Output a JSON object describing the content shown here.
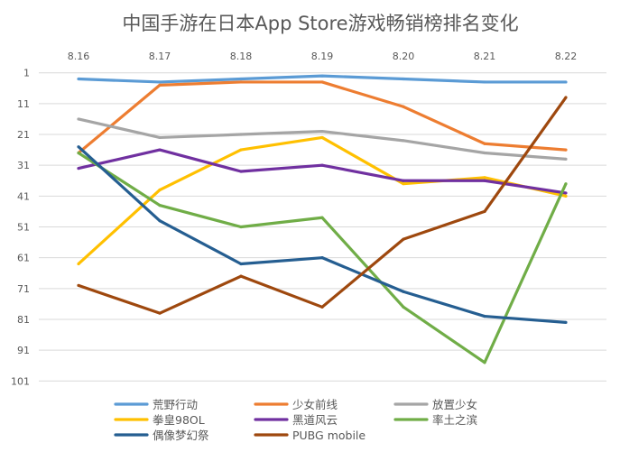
{
  "chart_data": {
    "type": "line",
    "title": "中国手游在日本App Store游戏畅销榜排名变化",
    "xlabel": "",
    "ylabel": "",
    "categories": [
      "8.16",
      "8.17",
      "8.18",
      "8.19",
      "8.20",
      "8.21",
      "8.22"
    ],
    "y_ticks": [
      "1",
      "11",
      "21",
      "31",
      "41",
      "51",
      "61",
      "71",
      "81",
      "91",
      "101"
    ],
    "ylim": [
      1,
      101
    ],
    "y_inverted": true,
    "grid": true,
    "legend_position": "bottom",
    "series": [
      {
        "name": "荒野行动",
        "color": "#5B9BD5",
        "values": [
          3,
          4,
          3,
          2,
          3,
          4,
          4
        ]
      },
      {
        "name": "少女前线",
        "color": "#ED7D31",
        "values": [
          27,
          5,
          4,
          4,
          12,
          24,
          26
        ]
      },
      {
        "name": "放置少女",
        "color": "#A5A5A5",
        "values": [
          16,
          22,
          21,
          20,
          23,
          27,
          29
        ]
      },
      {
        "name": "拳皇98OL",
        "color": "#FFC000",
        "values": [
          63,
          39,
          26,
          22,
          37,
          35,
          41
        ]
      },
      {
        "name": "黑道风云",
        "color": "#7030A0",
        "values": [
          32,
          26,
          33,
          31,
          36,
          36,
          40
        ]
      },
      {
        "name": "率土之滨",
        "color": "#70AD47",
        "values": [
          27,
          44,
          51,
          48,
          77,
          95,
          37
        ]
      },
      {
        "name": "偶像梦幻祭",
        "color": "#255E91",
        "values": [
          25,
          49,
          63,
          61,
          72,
          80,
          82
        ]
      },
      {
        "name": "PUBG mobile",
        "color": "#9E480E",
        "values": [
          70,
          79,
          67,
          77,
          55,
          46,
          9
        ]
      }
    ]
  }
}
